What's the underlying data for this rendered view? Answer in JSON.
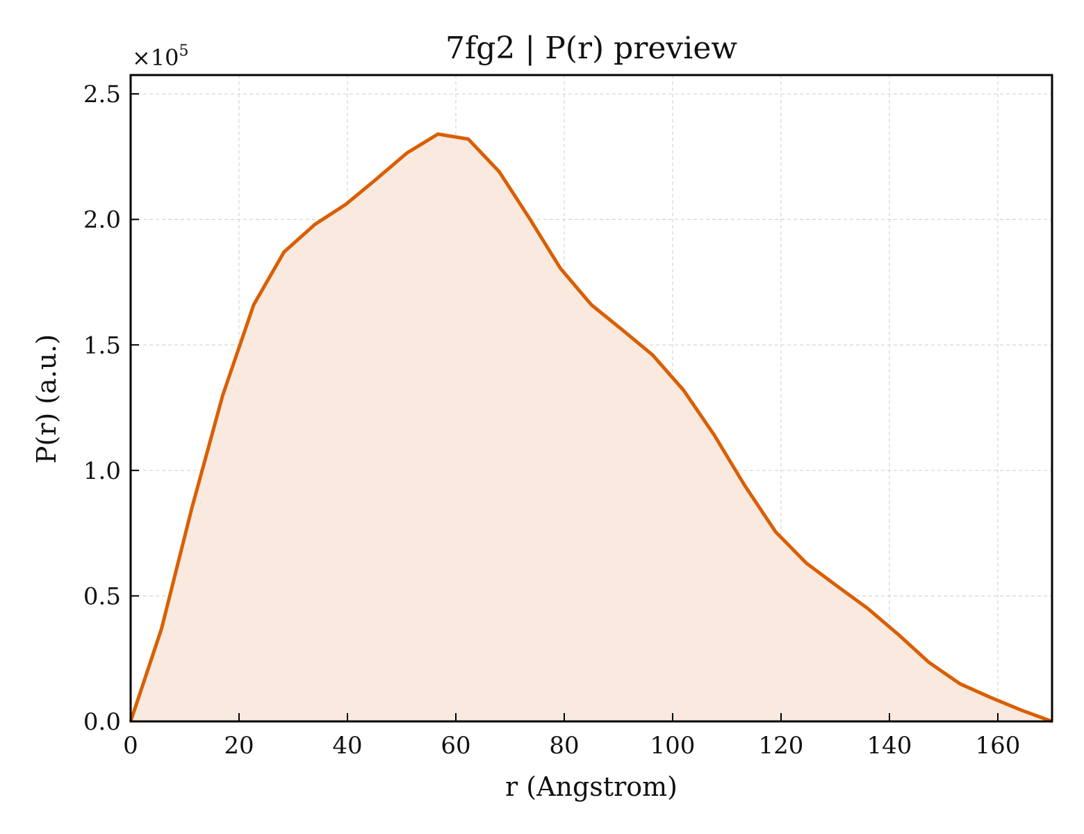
{
  "chart_data": {
    "type": "area",
    "title": "7fg2 | P(r) preview",
    "xlabel": "r (Angstrom)",
    "ylabel": "P(r) (a.u.)",
    "y_scale_exponent_base": "×10",
    "y_scale_exponent_power": "5",
    "xlim": [
      0,
      170
    ],
    "ylim": [
      0,
      2.575
    ],
    "x_ticks": [
      0,
      20,
      40,
      60,
      80,
      100,
      120,
      140,
      160
    ],
    "x_tick_labels": [
      "0",
      "20",
      "40",
      "60",
      "80",
      "100",
      "120",
      "140",
      "160"
    ],
    "y_ticks": [
      0,
      0.5,
      1.0,
      1.5,
      2.0,
      2.5
    ],
    "y_tick_labels": [
      "0.0",
      "0.5",
      "1.0",
      "1.5",
      "2.0",
      "2.5"
    ],
    "grid": true,
    "legend": "none",
    "line_color": "#d95f02",
    "fill_color": "#f9e9df",
    "series": [
      {
        "x": [
          0,
          5.7,
          11.3,
          17.0,
          22.7,
          28.3,
          34.0,
          39.7,
          45.3,
          51.0,
          56.7,
          62.3,
          68.0,
          73.7,
          79.3,
          85.0,
          90.7,
          96.3,
          102.0,
          107.7,
          113.3,
          119.0,
          124.7,
          130.3,
          136.0,
          141.7,
          147.3,
          153.0,
          158.7,
          164.3,
          170.0
        ],
        "values": [
          0,
          0.37,
          0.85,
          1.3,
          1.66,
          1.87,
          1.98,
          2.06,
          2.16,
          2.265,
          2.34,
          2.32,
          2.19,
          2.0,
          1.805,
          1.66,
          1.56,
          1.46,
          1.32,
          1.14,
          0.94,
          0.755,
          0.63,
          0.54,
          0.45,
          0.345,
          0.235,
          0.15,
          0.095,
          0.045,
          0
        ]
      }
    ]
  }
}
